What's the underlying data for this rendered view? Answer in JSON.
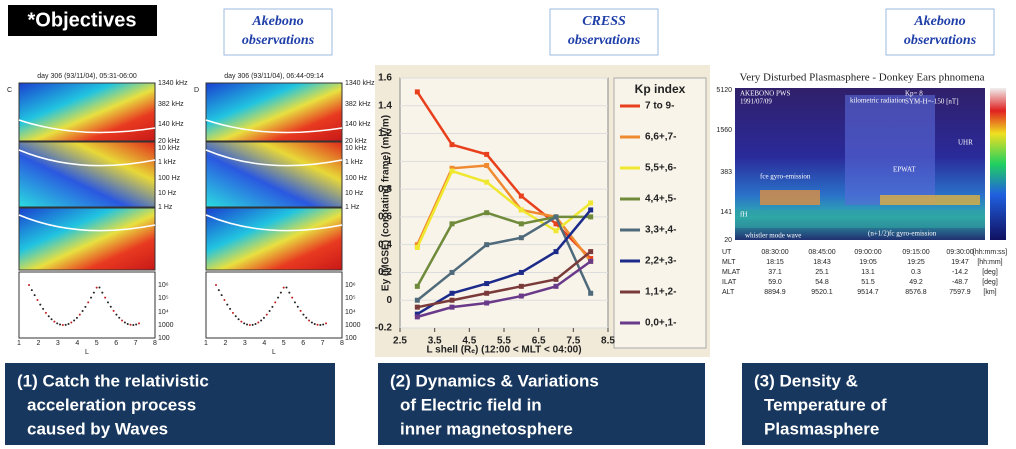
{
  "header": {
    "title": "*Objectives"
  },
  "panels": [
    {
      "source": [
        "Akebono",
        "observations"
      ],
      "caption": [
        "(1) Catch the relativistic",
        "acceleration process",
        "caused by Waves"
      ]
    },
    {
      "source": [
        "CRESS",
        "observations"
      ],
      "caption": [
        "(2) Dynamics & Variations",
        "of Electric field in",
        "inner magnetosphere"
      ]
    },
    {
      "source": [
        "Akebono",
        "observations"
      ],
      "caption": [
        "(3) Density &",
        "Temperature of",
        "Plasmasphere"
      ]
    }
  ],
  "left_plots": [
    {
      "letter": "C",
      "title": "day 306 (93/11/04), 05:31-06:00"
    },
    {
      "letter": "D",
      "title": "day 306 (93/11/04), 06:44-09:14"
    }
  ],
  "left_labels": [
    "1340 kHz",
    "382 kHz",
    "140 kHz",
    "20 kHz",
    "10 kHz",
    "1 kHz",
    "100 Hz",
    "10 Hz",
    "1 Hz",
    "10⁶",
    "10⁵",
    "10⁴",
    "1000",
    "100"
  ],
  "left_xticks": [
    "1",
    "2",
    "3",
    "4",
    "5",
    "6",
    "7",
    "8"
  ],
  "left_xlabel": "L",
  "right_plot": {
    "title": "Very Disturbed Plasmasphere - Donkey Ears phnomena",
    "yticks": [
      "5120",
      "1560",
      "383",
      "141",
      "20"
    ],
    "annotations": [
      "AKEBONO PWS",
      "1991/07/09",
      "Kp= 8",
      "SYM-H=-150 [nT]",
      "kilometric radiation",
      "UHR",
      "EPWAT",
      "fce gyro-emission",
      "fH",
      "whistler mode wave",
      "(n+1/2)fc gyro-emission"
    ],
    "table": [
      [
        "UT",
        "08:30:00",
        "08:45:00",
        "09:00:00",
        "09:15:00",
        "09:30:00",
        "[hh:mm:ss]"
      ],
      [
        "MLT",
        "18:15",
        "18:43",
        "19:05",
        "19:25",
        "19:47",
        "[hh:mm]"
      ],
      [
        "MLAT",
        "37.1",
        "25.1",
        "13.1",
        "0.3",
        "-14.2",
        "[deg]"
      ],
      [
        "ILAT",
        "59.0",
        "54.8",
        "51.5",
        "49.2",
        "-48.7",
        "[deg]"
      ],
      [
        "ALT",
        "8894.9",
        "9520.1",
        "9514.7",
        "8576.8",
        "7597.9",
        "[km]"
      ]
    ]
  },
  "chart_data": {
    "type": "line",
    "x_label": "L shell (Rₑ) (12:00 < MLT < 04:00)",
    "y_label": "Ey (MGSE) (corotating frame) (mV/m)",
    "legend_title": "Kp index",
    "x": [
      3,
      4,
      5,
      6,
      7,
      8
    ],
    "xlim": [
      2.5,
      8.5
    ],
    "xticks": [
      2.5,
      3.5,
      4.5,
      5.5,
      6.5,
      7.5,
      8.5
    ],
    "ylim": [
      -0.2,
      1.6
    ],
    "yticks": [
      -0.2,
      0,
      0.2,
      0.4,
      0.6,
      0.8,
      1,
      1.2,
      1.4,
      1.6
    ],
    "series": [
      {
        "name": "7 to 9-",
        "color": "#e8401c",
        "values": [
          1.5,
          1.12,
          1.05,
          0.75,
          0.55,
          0.3
        ]
      },
      {
        "name": "6,6+,7-",
        "color": "#f08a30",
        "values": [
          0.4,
          0.95,
          0.97,
          0.65,
          0.6,
          0.28
        ]
      },
      {
        "name": "5,5+,6-",
        "color": "#f0e830",
        "values": [
          0.38,
          0.93,
          0.85,
          0.65,
          0.5,
          0.7
        ]
      },
      {
        "name": "4,4+,5-",
        "color": "#6f8a3a",
        "values": [
          0.1,
          0.55,
          0.63,
          0.55,
          0.6,
          0.6
        ]
      },
      {
        "name": "3,3+,4-",
        "color": "#4f6a7a",
        "values": [
          0.0,
          0.2,
          0.4,
          0.45,
          0.6,
          0.05
        ]
      },
      {
        "name": "2,2+,3-",
        "color": "#1c2a8a",
        "values": [
          -0.1,
          0.05,
          0.12,
          0.2,
          0.35,
          0.65
        ]
      },
      {
        "name": "1,1+,2-",
        "color": "#7a3a3a",
        "values": [
          -0.05,
          0.0,
          0.05,
          0.1,
          0.15,
          0.35
        ]
      },
      {
        "name": "0,0+,1-",
        "color": "#6a3a8a",
        "values": [
          -0.12,
          -0.05,
          -0.02,
          0.03,
          0.1,
          0.28
        ]
      }
    ]
  }
}
